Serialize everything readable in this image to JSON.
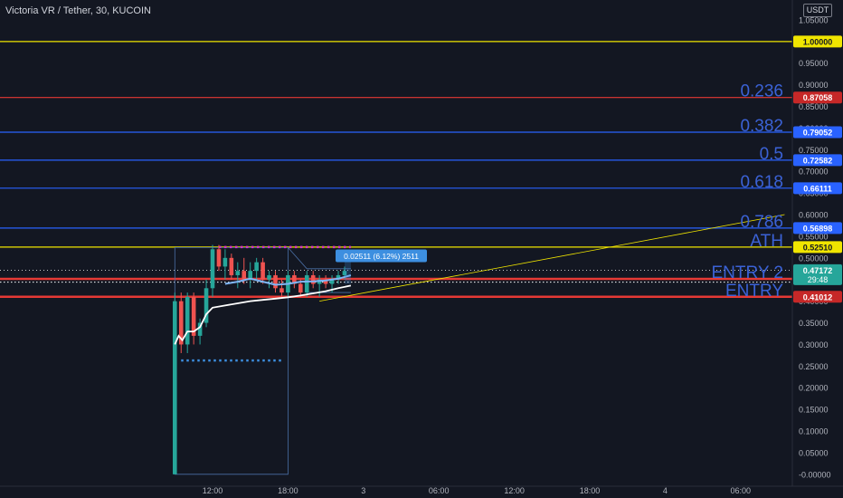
{
  "header": {
    "title": "Victoria VR / Tether, 30, KUCOIN",
    "currency": "USDT"
  },
  "colors": {
    "background": "#131722",
    "yellow": "#f0e500",
    "red": "#e53935",
    "blue": "#2962ff",
    "fib_text": "#3b62d6",
    "bull": "#26a69a",
    "bear": "#ef5350",
    "magenta": "#d633c8",
    "measure": "#3d8fe0"
  },
  "chart_data": {
    "type": "line",
    "symbol": "VRUSDT",
    "interval": "30",
    "exchange": "KUCOIN",
    "ylim": [
      -0.015,
      1.075
    ],
    "grid": false,
    "y_ticks": [
      "1.05000",
      "1.00000",
      "0.95000",
      "0.90000",
      "0.85000",
      "0.80000",
      "0.75000",
      "0.70000",
      "0.65000",
      "0.60000",
      "0.55000",
      "0.50000",
      "0.45000",
      "0.40000",
      "0.35000",
      "0.30000",
      "0.25000",
      "0.20000",
      "0.15000",
      "0.10000",
      "0.05000",
      "-0.00000"
    ],
    "y_tick_values": [
      1.05,
      1.0,
      0.95,
      0.9,
      0.85,
      0.8,
      0.75,
      0.7,
      0.65,
      0.6,
      0.55,
      0.5,
      0.45,
      0.4,
      0.35,
      0.3,
      0.25,
      0.2,
      0.15,
      0.1,
      0.05,
      0.0
    ],
    "x_ticks": [
      "12:00",
      "18:00",
      "3",
      "06:00",
      "12:00",
      "18:00",
      "4",
      "06:00"
    ],
    "x_tick_hours": [
      12,
      18,
      24,
      30,
      36,
      42,
      48,
      54
    ],
    "horizontal_levels": [
      {
        "label": "",
        "price": 1.0,
        "price_label": "1.00000",
        "color": "#f0e500"
      },
      {
        "label": "0.236",
        "price": 0.87058,
        "price_label": "0.87058",
        "color": "#e53935"
      },
      {
        "label": "0.382",
        "price": 0.79052,
        "price_label": "0.79052",
        "color": "#2962ff"
      },
      {
        "label": "0.5",
        "price": 0.72582,
        "price_label": "0.72582",
        "color": "#2962ff"
      },
      {
        "label": "0.618",
        "price": 0.66111,
        "price_label": "0.66111",
        "color": "#2962ff"
      },
      {
        "label": "0.786",
        "price": 0.56898,
        "price_label": "0.56898",
        "color": "#2962ff"
      },
      {
        "label": "ATH",
        "price": 0.5251,
        "price_label": "0.52510",
        "color": "#f0e500"
      },
      {
        "label": "ENTRY 2",
        "price": 0.45163,
        "price_label": "0.45163",
        "color": "#e53935"
      },
      {
        "label": "ENTRY",
        "price": 0.41012,
        "price_label": "0.41012",
        "color": "#e53935"
      }
    ],
    "last_price": {
      "price": 0.47172,
      "label": "0.47172",
      "countdown": "29:48",
      "color": "#26a69a"
    },
    "measure_label": "0.02511 (6.12%) 2511",
    "candles": [
      {
        "t": 9.0,
        "o": 0.0,
        "h": 0.42,
        "l": 0.0,
        "c": 0.4
      },
      {
        "t": 9.5,
        "o": 0.4,
        "h": 0.42,
        "l": 0.28,
        "c": 0.3
      },
      {
        "t": 10.0,
        "o": 0.3,
        "h": 0.42,
        "l": 0.28,
        "c": 0.41
      },
      {
        "t": 10.5,
        "o": 0.41,
        "h": 0.42,
        "l": 0.3,
        "c": 0.32
      },
      {
        "t": 11.0,
        "o": 0.32,
        "h": 0.36,
        "l": 0.3,
        "c": 0.35
      },
      {
        "t": 11.5,
        "o": 0.35,
        "h": 0.45,
        "l": 0.34,
        "c": 0.43
      },
      {
        "t": 12.0,
        "o": 0.43,
        "h": 0.53,
        "l": 0.41,
        "c": 0.52
      },
      {
        "t": 12.5,
        "o": 0.52,
        "h": 0.53,
        "l": 0.47,
        "c": 0.48
      },
      {
        "t": 13.0,
        "o": 0.48,
        "h": 0.52,
        "l": 0.45,
        "c": 0.5
      },
      {
        "t": 13.5,
        "o": 0.5,
        "h": 0.51,
        "l": 0.45,
        "c": 0.46
      },
      {
        "t": 14.0,
        "o": 0.46,
        "h": 0.49,
        "l": 0.43,
        "c": 0.47
      },
      {
        "t": 14.5,
        "o": 0.47,
        "h": 0.5,
        "l": 0.44,
        "c": 0.45
      },
      {
        "t": 15.0,
        "o": 0.45,
        "h": 0.49,
        "l": 0.43,
        "c": 0.47
      },
      {
        "t": 15.5,
        "o": 0.47,
        "h": 0.5,
        "l": 0.45,
        "c": 0.49
      },
      {
        "t": 16.0,
        "o": 0.49,
        "h": 0.5,
        "l": 0.44,
        "c": 0.45
      },
      {
        "t": 16.5,
        "o": 0.45,
        "h": 0.47,
        "l": 0.43,
        "c": 0.46
      },
      {
        "t": 17.0,
        "o": 0.46,
        "h": 0.47,
        "l": 0.42,
        "c": 0.43
      },
      {
        "t": 17.5,
        "o": 0.43,
        "h": 0.45,
        "l": 0.41,
        "c": 0.42
      },
      {
        "t": 18.0,
        "o": 0.42,
        "h": 0.47,
        "l": 0.41,
        "c": 0.46
      },
      {
        "t": 18.5,
        "o": 0.46,
        "h": 0.47,
        "l": 0.43,
        "c": 0.44
      },
      {
        "t": 19.0,
        "o": 0.44,
        "h": 0.45,
        "l": 0.41,
        "c": 0.42
      },
      {
        "t": 19.5,
        "o": 0.42,
        "h": 0.47,
        "l": 0.41,
        "c": 0.46
      },
      {
        "t": 20.0,
        "o": 0.46,
        "h": 0.47,
        "l": 0.43,
        "c": 0.44
      },
      {
        "t": 20.5,
        "o": 0.44,
        "h": 0.46,
        "l": 0.41,
        "c": 0.45
      },
      {
        "t": 21.0,
        "o": 0.45,
        "h": 0.46,
        "l": 0.43,
        "c": 0.44
      },
      {
        "t": 21.5,
        "o": 0.44,
        "h": 0.46,
        "l": 0.42,
        "c": 0.45
      },
      {
        "t": 22.0,
        "o": 0.45,
        "h": 0.47,
        "l": 0.44,
        "c": 0.46
      },
      {
        "t": 22.5,
        "o": 0.46,
        "h": 0.48,
        "l": 0.45,
        "c": 0.47
      }
    ],
    "ma_white": [
      {
        "t": 9.0,
        "v": 0.3
      },
      {
        "t": 9.3,
        "v": 0.32
      },
      {
        "t": 9.6,
        "v": 0.31
      },
      {
        "t": 10.0,
        "v": 0.33
      },
      {
        "t": 10.5,
        "v": 0.33
      },
      {
        "t": 11.0,
        "v": 0.34
      },
      {
        "t": 11.5,
        "v": 0.37
      },
      {
        "t": 12.0,
        "v": 0.385
      },
      {
        "t": 13.0,
        "v": 0.39
      },
      {
        "t": 14.0,
        "v": 0.395
      },
      {
        "t": 15.0,
        "v": 0.4
      },
      {
        "t": 16.0,
        "v": 0.403
      },
      {
        "t": 17.0,
        "v": 0.406
      },
      {
        "t": 18.0,
        "v": 0.409
      },
      {
        "t": 19.0,
        "v": 0.413
      },
      {
        "t": 20.0,
        "v": 0.418
      },
      {
        "t": 21.0,
        "v": 0.423
      },
      {
        "t": 22.0,
        "v": 0.43
      },
      {
        "t": 23.0,
        "v": 0.436
      }
    ],
    "ma_blue": [
      {
        "t": 13.0,
        "v": 0.44
      },
      {
        "t": 14.0,
        "v": 0.445
      },
      {
        "t": 15.0,
        "v": 0.452
      },
      {
        "t": 16.0,
        "v": 0.445
      },
      {
        "t": 17.0,
        "v": 0.438
      },
      {
        "t": 18.0,
        "v": 0.44
      },
      {
        "t": 19.0,
        "v": 0.445
      },
      {
        "t": 20.0,
        "v": 0.446
      },
      {
        "t": 21.0,
        "v": 0.448
      },
      {
        "t": 22.0,
        "v": 0.452
      },
      {
        "t": 23.0,
        "v": 0.46
      }
    ],
    "trendline_yellow": [
      {
        "t": 20.5,
        "v": 0.4
      },
      {
        "t": 57.5,
        "v": 0.6
      }
    ],
    "dotted_levels": [
      {
        "price": 0.525,
        "t0": 12.5,
        "t1": 23.0,
        "color": "#d633c8"
      },
      {
        "price": 0.263,
        "t0": 9.5,
        "t1": 17.5,
        "color": "#3d8fe0"
      }
    ]
  }
}
